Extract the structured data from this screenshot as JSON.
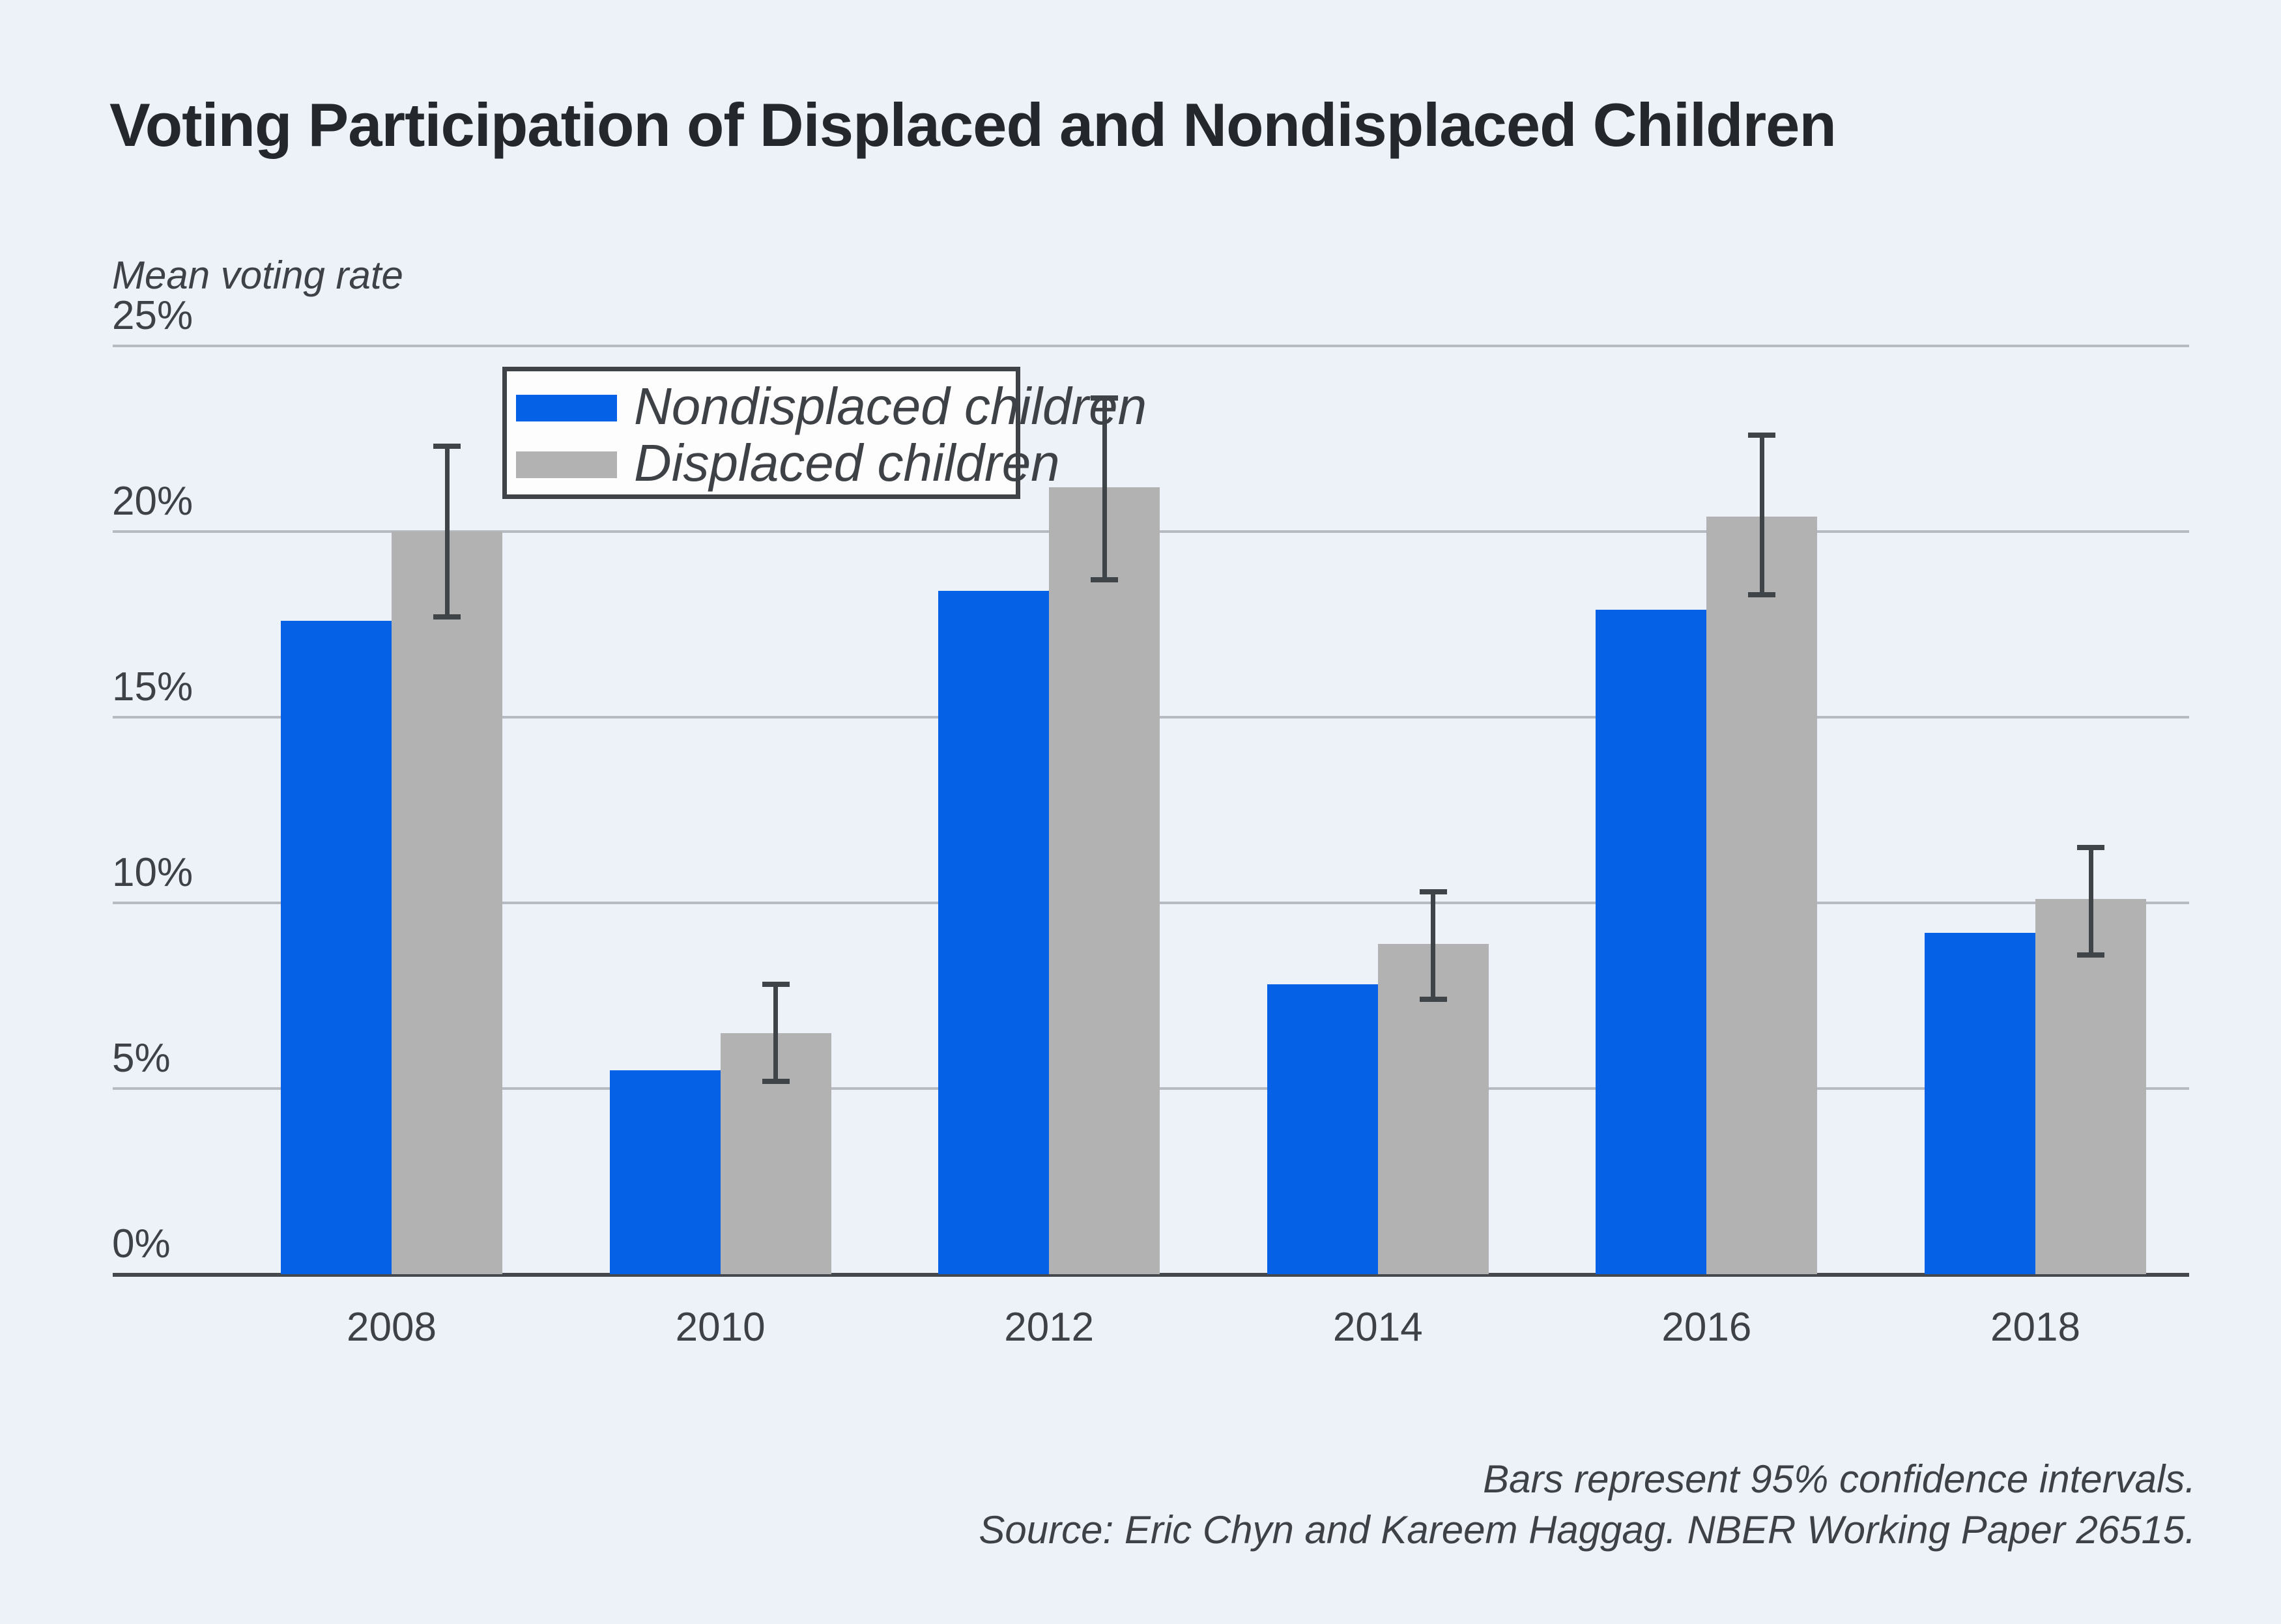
{
  "title": "Voting Participation of Displaced and Nondisplaced Children",
  "axis_title": "Mean voting rate",
  "legend": {
    "items": [
      {
        "label": "Nondisplaced children",
        "color": "#0561e6"
      },
      {
        "label": "Displaced children",
        "color": "#b2b2b2"
      }
    ]
  },
  "footer": {
    "line1": "Bars represent 95% confidence intervals.",
    "line2": "Source: Eric Chyn and Kareem Haggag. NBER Working Paper 26515."
  },
  "colors": {
    "background": "#edf2f9",
    "nondisplaced_blue": "#0561e6",
    "displaced_gray": "#b2b2b2",
    "gridline": "#b7bbc1",
    "axis_dark": "#45494e",
    "error_bar": "#3f4449",
    "text": "#3e4247",
    "title_text": "#24272b"
  },
  "chart_data": {
    "type": "bar",
    "categories": [
      "2008",
      "2010",
      "2012",
      "2014",
      "2016",
      "2018"
    ],
    "series": [
      {
        "name": "Nondisplaced children",
        "color": "#0561e6",
        "values": [
          17.6,
          5.5,
          18.4,
          7.8,
          17.9,
          9.2
        ]
      },
      {
        "name": "Displaced children",
        "color": "#b2b2b2",
        "values": [
          20.0,
          6.5,
          21.2,
          8.9,
          20.4,
          10.1
        ],
        "ci_low": [
          17.7,
          5.2,
          18.7,
          7.4,
          18.3,
          8.6
        ],
        "ci_high": [
          22.3,
          7.8,
          23.6,
          10.3,
          22.6,
          11.5
        ]
      }
    ],
    "title": "Voting Participation of Displaced and Nondisplaced Children",
    "xlabel": "",
    "ylabel": "Mean voting rate",
    "ylim": [
      0,
      25
    ],
    "yticks": [
      {
        "value": 25,
        "label": "25%"
      },
      {
        "value": 20,
        "label": "20%"
      },
      {
        "value": 15,
        "label": "15%"
      },
      {
        "value": 10,
        "label": "10%"
      },
      {
        "value": 5,
        "label": "5%"
      },
      {
        "value": 0,
        "label": "0%"
      }
    ],
    "grid": true,
    "legend_position": "upper-left-inside",
    "note": "Bars represent 95% confidence intervals."
  }
}
